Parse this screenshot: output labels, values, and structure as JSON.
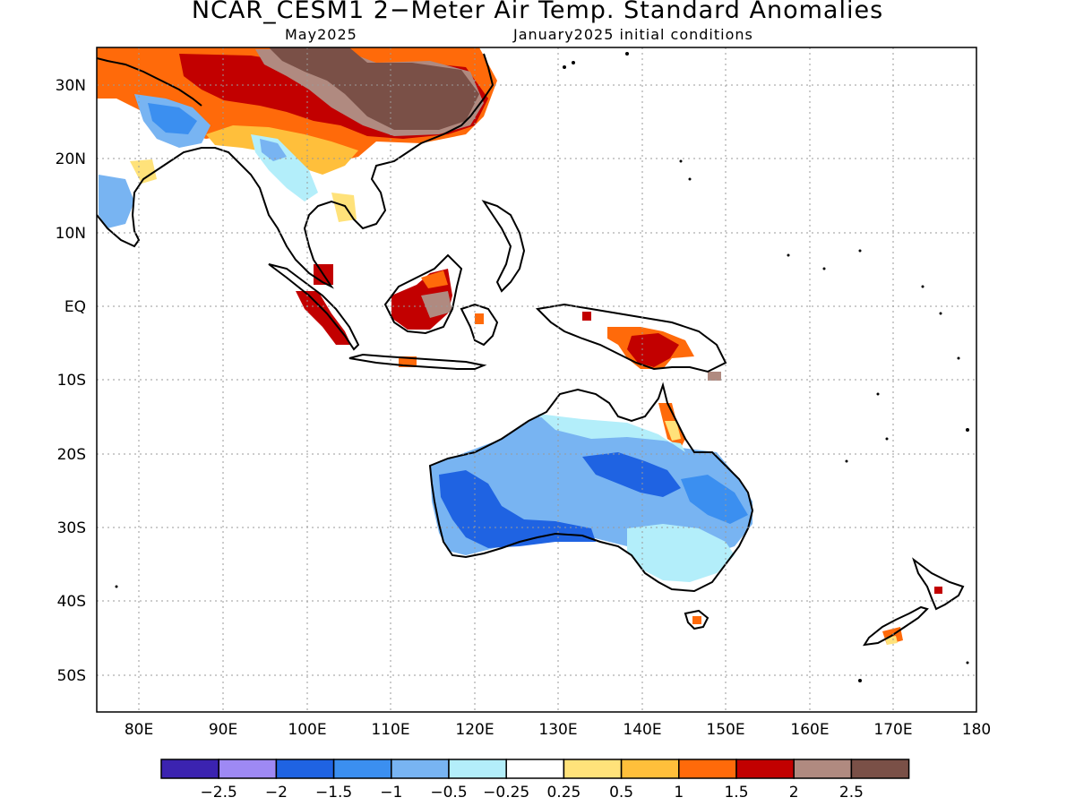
{
  "title": "NCAR_CESM1 2−Meter Air Temp. Standard Anomalies",
  "subtitle_left": "May2025",
  "subtitle_right": "January2025 initial conditions",
  "lat_labels": [
    "30N",
    "20N",
    "10N",
    "EQ",
    "10S",
    "20S",
    "30S",
    "40S",
    "50S"
  ],
  "lon_labels": [
    "80E",
    "90E",
    "100E",
    "110E",
    "120E",
    "130E",
    "140E",
    "150E",
    "160E",
    "170E",
    "180"
  ],
  "colorbar": {
    "colors": [
      "#3b23b0",
      "#9e89f4",
      "#1f63e2",
      "#3b8ff0",
      "#78b4f2",
      "#b3eefa",
      "#ffffff",
      "#ffe27a",
      "#ffbf3b",
      "#ff6a0a",
      "#c20000",
      "#b08a80",
      "#7a5047"
    ],
    "labels": [
      "−2.5",
      "−2",
      "−1.5",
      "−1",
      "−0.5",
      "−0.25",
      "0.25",
      "0.5",
      "1",
      "1.5",
      "2",
      "2.5"
    ]
  },
  "map_region": {
    "lon_min": 75,
    "lon_max": 180,
    "lat_min": -55,
    "lat_max": 35
  }
}
